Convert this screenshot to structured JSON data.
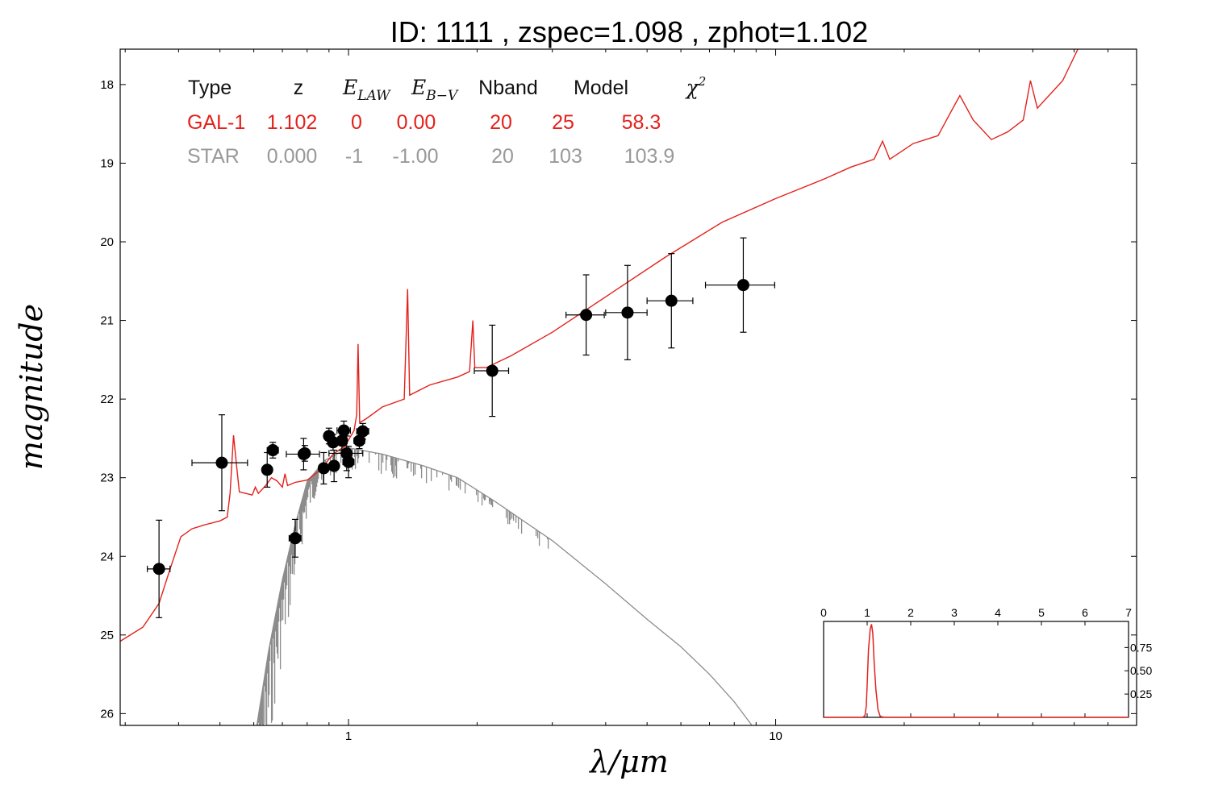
{
  "chart_data": {
    "type": "scatter",
    "title": "ID:  1111  , zspec=1.098 , zphot=1.102",
    "xlabel": "λ/μm",
    "ylabel": "magnitude",
    "x_scale": "log",
    "xlim": [
      0.292,
      70
    ],
    "ylim": [
      26.15,
      17.55
    ],
    "y_inverted": true,
    "x_ticks": [
      {
        "value": 1,
        "label": "1"
      },
      {
        "value": 10,
        "label": "10"
      }
    ],
    "y_ticks": [
      {
        "value": 18,
        "label": "18"
      },
      {
        "value": 19,
        "label": "19"
      },
      {
        "value": 20,
        "label": "20"
      },
      {
        "value": 21,
        "label": "21"
      },
      {
        "value": 22,
        "label": "22"
      },
      {
        "value": 23,
        "label": "23"
      },
      {
        "value": 24,
        "label": "24"
      },
      {
        "value": 25,
        "label": "25"
      },
      {
        "value": 26,
        "label": "26"
      }
    ],
    "colors": {
      "galaxy": "#e3211c",
      "star": "#8c8c8c",
      "points": "#000000"
    },
    "table": {
      "headers": [
        "Type",
        "z",
        "E_LAW",
        "E_B−V",
        "Nband",
        "Model",
        "χ²"
      ],
      "rows": [
        {
          "name": "galaxy",
          "color": "#e3211c",
          "cells": [
            "GAL-1",
            "1.102",
            "0",
            "0.00",
            "20",
            "25",
            "58.3"
          ]
        },
        {
          "name": "star",
          "color": "#999999",
          "cells": [
            "STAR",
            "0.000",
            "-1",
            "-1.00",
            "20",
            "103",
            "103.9"
          ]
        }
      ]
    },
    "photometry": [
      {
        "x": 0.36,
        "y": 24.16,
        "xerr": 0.022,
        "yerr": 0.62
      },
      {
        "x": 0.505,
        "y": 22.81,
        "xerr": 0.075,
        "yerr": 0.61
      },
      {
        "x": 0.645,
        "y": 22.9,
        "xerr": 0.011,
        "yerr": 0.22
      },
      {
        "x": 0.665,
        "y": 22.65,
        "xerr": 0.02,
        "yerr": 0.1
      },
      {
        "x": 0.75,
        "y": 23.77,
        "xerr": 0.024,
        "yerr": 0.24
      },
      {
        "x": 0.785,
        "y": 22.7,
        "xerr": 0.07,
        "yerr": 0.2
      },
      {
        "x": 0.79,
        "y": 22.69,
        "xerr": 0.015,
        "yerr": 0.1
      },
      {
        "x": 0.875,
        "y": 22.88,
        "xerr": 0.018,
        "yerr": 0.2
      },
      {
        "x": 0.9,
        "y": 22.47,
        "xerr": 0.015,
        "yerr": 0.1
      },
      {
        "x": 0.92,
        "y": 22.55,
        "xerr": 0.02,
        "yerr": 0.1
      },
      {
        "x": 0.925,
        "y": 22.85,
        "xerr": 0.02,
        "yerr": 0.2
      },
      {
        "x": 0.965,
        "y": 22.53,
        "xerr": 0.028,
        "yerr": 0.12
      },
      {
        "x": 0.975,
        "y": 22.4,
        "xerr": 0.035,
        "yerr": 0.12
      },
      {
        "x": 0.99,
        "y": 22.69,
        "xerr": 0.09,
        "yerr": 0.22
      },
      {
        "x": 1.0,
        "y": 22.8,
        "xerr": 0.03,
        "yerr": 0.2
      },
      {
        "x": 1.06,
        "y": 22.53,
        "xerr": 0.03,
        "yerr": 0.1
      },
      {
        "x": 1.08,
        "y": 22.41,
        "xerr": 0.035,
        "yerr": 0.1
      },
      {
        "x": 2.17,
        "y": 21.64,
        "xerr": 0.2,
        "yerr": 0.58
      },
      {
        "x": 3.6,
        "y": 20.93,
        "xerr": 0.37,
        "yerr": 0.51
      },
      {
        "x": 4.5,
        "y": 20.9,
        "xerr": 0.5,
        "yerr": 0.6
      },
      {
        "x": 5.7,
        "y": 20.75,
        "xerr": 0.7,
        "yerr": 0.6
      },
      {
        "x": 8.4,
        "y": 20.55,
        "xerr": 1.55,
        "yerr": 0.6
      }
    ],
    "galaxy_model": [
      [
        0.292,
        25.08
      ],
      [
        0.33,
        24.9
      ],
      [
        0.36,
        24.6
      ],
      [
        0.38,
        24.2
      ],
      [
        0.405,
        23.75
      ],
      [
        0.43,
        23.65
      ],
      [
        0.46,
        23.6
      ],
      [
        0.5,
        23.55
      ],
      [
        0.52,
        23.5
      ],
      [
        0.528,
        23.2
      ],
      [
        0.538,
        22.46
      ],
      [
        0.547,
        22.85
      ],
      [
        0.555,
        23.18
      ],
      [
        0.575,
        23.2
      ],
      [
        0.595,
        23.22
      ],
      [
        0.605,
        23.12
      ],
      [
        0.615,
        23.2
      ],
      [
        0.64,
        23.1
      ],
      [
        0.66,
        23.0
      ],
      [
        0.68,
        23.04
      ],
      [
        0.7,
        23.12
      ],
      [
        0.71,
        22.95
      ],
      [
        0.72,
        23.1
      ],
      [
        0.75,
        23.06
      ],
      [
        0.8,
        23.03
      ],
      [
        0.86,
        22.9
      ],
      [
        0.92,
        22.7
      ],
      [
        0.98,
        22.6
      ],
      [
        1.03,
        22.4
      ],
      [
        1.045,
        22.2
      ],
      [
        1.053,
        21.3
      ],
      [
        1.062,
        22.3
      ],
      [
        1.1,
        22.25
      ],
      [
        1.2,
        22.1
      ],
      [
        1.35,
        22.0
      ],
      [
        1.375,
        20.6
      ],
      [
        1.39,
        21.95
      ],
      [
        1.55,
        21.82
      ],
      [
        1.8,
        21.72
      ],
      [
        1.92,
        21.65
      ],
      [
        1.955,
        21.0
      ],
      [
        1.975,
        21.6
      ],
      [
        2.1,
        21.6
      ],
      [
        2.4,
        21.45
      ],
      [
        3.0,
        21.15
      ],
      [
        4.0,
        20.7
      ],
      [
        5.5,
        20.2
      ],
      [
        7.5,
        19.75
      ],
      [
        10.0,
        19.45
      ],
      [
        13.0,
        19.2
      ],
      [
        15.0,
        19.05
      ],
      [
        17.0,
        18.95
      ],
      [
        17.8,
        18.72
      ],
      [
        18.5,
        18.95
      ],
      [
        21.0,
        18.75
      ],
      [
        24.0,
        18.65
      ],
      [
        26.0,
        18.3
      ],
      [
        27.0,
        18.14
      ],
      [
        29.0,
        18.45
      ],
      [
        32.0,
        18.7
      ],
      [
        35.0,
        18.6
      ],
      [
        38.0,
        18.45
      ],
      [
        39.5,
        17.95
      ],
      [
        41.0,
        18.3
      ],
      [
        47.0,
        17.95
      ],
      [
        51.0,
        17.55
      ]
    ],
    "star_model": [
      [
        0.6,
        26.4
      ],
      [
        0.65,
        25.2
      ],
      [
        0.7,
        24.3
      ],
      [
        0.75,
        23.6
      ],
      [
        0.8,
        23.05
      ],
      [
        0.88,
        22.78
      ],
      [
        1.0,
        22.62
      ],
      [
        1.2,
        22.7
      ],
      [
        1.5,
        22.85
      ],
      [
        1.8,
        23.0
      ],
      [
        2.2,
        23.3
      ],
      [
        3.0,
        23.8
      ],
      [
        4.0,
        24.35
      ],
      [
        5.0,
        24.8
      ],
      [
        6.0,
        25.15
      ],
      [
        7.0,
        25.5
      ],
      [
        8.0,
        25.85
      ],
      [
        8.8,
        26.15
      ]
    ],
    "inset": {
      "type": "line",
      "x_ticks": [
        "0",
        "1",
        "2",
        "3",
        "4",
        "5",
        "6",
        "7"
      ],
      "y_ticks": [
        "0.25",
        "0.50",
        "0.75"
      ],
      "xlim": [
        0,
        7
      ],
      "ylim": [
        0,
        1.03
      ],
      "pdz": [
        [
          0,
          0.0
        ],
        [
          0.9,
          0.0
        ],
        [
          0.95,
          0.02
        ],
        [
          0.98,
          0.12
        ],
        [
          1.0,
          0.35
        ],
        [
          1.03,
          0.72
        ],
        [
          1.07,
          0.95
        ],
        [
          1.1,
          1.0
        ],
        [
          1.13,
          0.9
        ],
        [
          1.16,
          0.6
        ],
        [
          1.2,
          0.3
        ],
        [
          1.25,
          0.08
        ],
        [
          1.3,
          0.01
        ],
        [
          1.4,
          0.0
        ],
        [
          7,
          0.0
        ]
      ]
    }
  }
}
